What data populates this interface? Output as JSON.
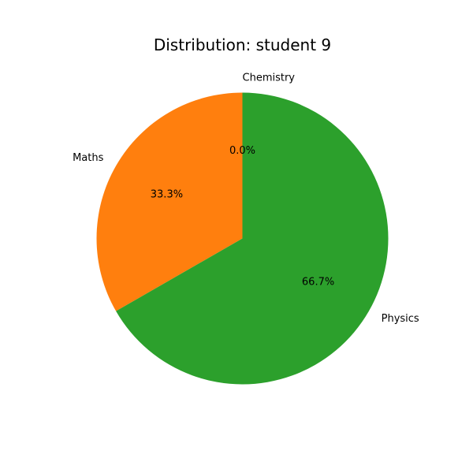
{
  "chart_data": {
    "type": "pie",
    "title": "Distribution: student 9",
    "slices": [
      {
        "label": "Chemistry",
        "value": 0.0,
        "pct_label": "0.0%",
        "color": "#1f77b4"
      },
      {
        "label": "Maths",
        "value": 33.3,
        "pct_label": "33.3%",
        "color": "#ff7f0e"
      },
      {
        "label": "Physics",
        "value": 66.7,
        "pct_label": "66.7%",
        "color": "#2ca02c"
      }
    ],
    "start_angle_deg": 90,
    "direction": "counterclockwise"
  }
}
